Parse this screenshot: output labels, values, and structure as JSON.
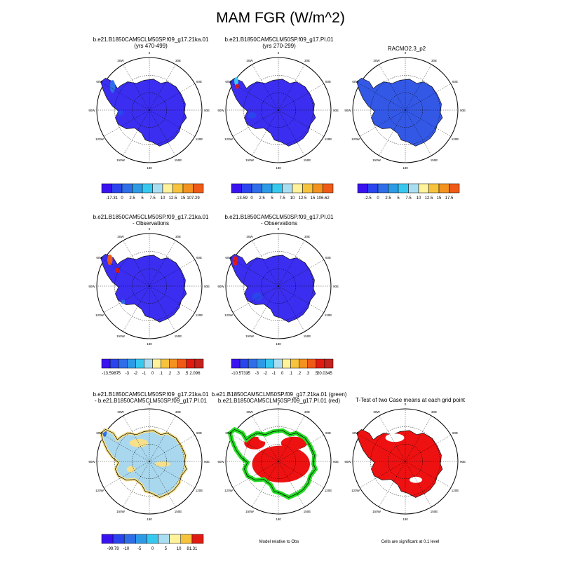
{
  "figure": {
    "title": "MAM FGR (W/m^2)"
  },
  "colors": {
    "blue_scale": [
      "#3a12f0",
      "#2a44ee",
      "#2f6ee8",
      "#2d9ae6",
      "#37c8f0",
      "#a9ddf2",
      "#fff29a",
      "#f7c23c",
      "#f4911f",
      "#ef5a17",
      "#e01b12",
      "#c4221e"
    ],
    "land_blue": "#3b2ef0",
    "racmo_blue": "#3358e6",
    "light_blue": "#a9d8ee",
    "yellow": "#f7e08a",
    "green": "#22dd22",
    "red": "#ee1111",
    "grid": "#000000"
  },
  "chart_data": [
    {
      "type": "heatmap",
      "panel": "case1",
      "title_line1": "b.e21.B1850CAM5CLM50SP.f09_g17.21ka.01",
      "title_line2": "(yrs 470-499)",
      "colorbar": {
        "labels": [
          "-17.31",
          "0",
          "2.5",
          "5",
          "7.5",
          "10",
          "12.5",
          "15",
          "107.29"
        ]
      },
      "lon_labels": [
        "30W",
        "0",
        "30E",
        "60E",
        "90E",
        "120E",
        "150E",
        "180",
        "150W",
        "120W",
        "90W",
        "60W"
      ]
    },
    {
      "type": "heatmap",
      "panel": "case2",
      "title_line1": "b.e21.B1850CAM5CLM50SP.f09_g17.PI.01",
      "title_line2": "(yrs 270-299)",
      "colorbar": {
        "labels": [
          "-13.59",
          "0",
          "2.5",
          "5",
          "7.5",
          "10",
          "12.5",
          "15",
          "106.62"
        ]
      }
    },
    {
      "type": "heatmap",
      "panel": "obs",
      "title_line1": "RACMO2.3_p2",
      "title_line2": "",
      "colorbar": {
        "labels": [
          "-2.5",
          "0",
          "2.5",
          "5",
          "7.5",
          "10",
          "12.5",
          "15",
          "17.5"
        ]
      }
    },
    {
      "type": "heatmap",
      "panel": "case1_minus_obs",
      "title_line1": "b.e21.B1850CAM5CLM50SP.f09_g17.21ka.01",
      "title_line2": "- Observations",
      "colorbar": {
        "labels": [
          "-13.5987",
          "-5",
          "-3",
          "-2",
          "-1",
          "0",
          ".1",
          ".2",
          ".3",
          ".5",
          "2.096"
        ]
      }
    },
    {
      "type": "heatmap",
      "panel": "case2_minus_obs",
      "title_line1": "b.e21.B1850CAM5CLM50SP.f09_g17.PI.01",
      "title_line2": "- Observations",
      "colorbar": {
        "labels": [
          "-10.5733",
          "-5",
          "-3",
          "-2",
          "-1",
          "0",
          ".1",
          ".2",
          ".3",
          ".5",
          "20.0345"
        ]
      }
    },
    {
      "type": "heatmap",
      "panel": "case1_minus_case2",
      "title_line1": "b.e21.B1850CAM5CLM50SP.f09_g17.21ka.01",
      "title_line2": "- b.e21.B1850CAM5CLM50SP.f09_g17.PI.01",
      "colorbar": {
        "labels": [
          "-99.78",
          "-10",
          "-5",
          "0",
          "5",
          "10",
          "81.31"
        ]
      }
    },
    {
      "type": "heatmap",
      "panel": "model_relative_to_obs",
      "title_line1": "b.e21.B1850CAM5CLM50SP.f09_g17.21ka.01 (green)",
      "title_line2": "b.e21.B1850CAM5CLM50SP.f09_g17.PI.01 (red)",
      "caption": "Model relative to Obs"
    },
    {
      "type": "heatmap",
      "panel": "ttest",
      "title_line1": "T-Test of two Case means at each grid point",
      "title_line2": "",
      "caption": "Cells are significant at 0.1 level"
    }
  ]
}
